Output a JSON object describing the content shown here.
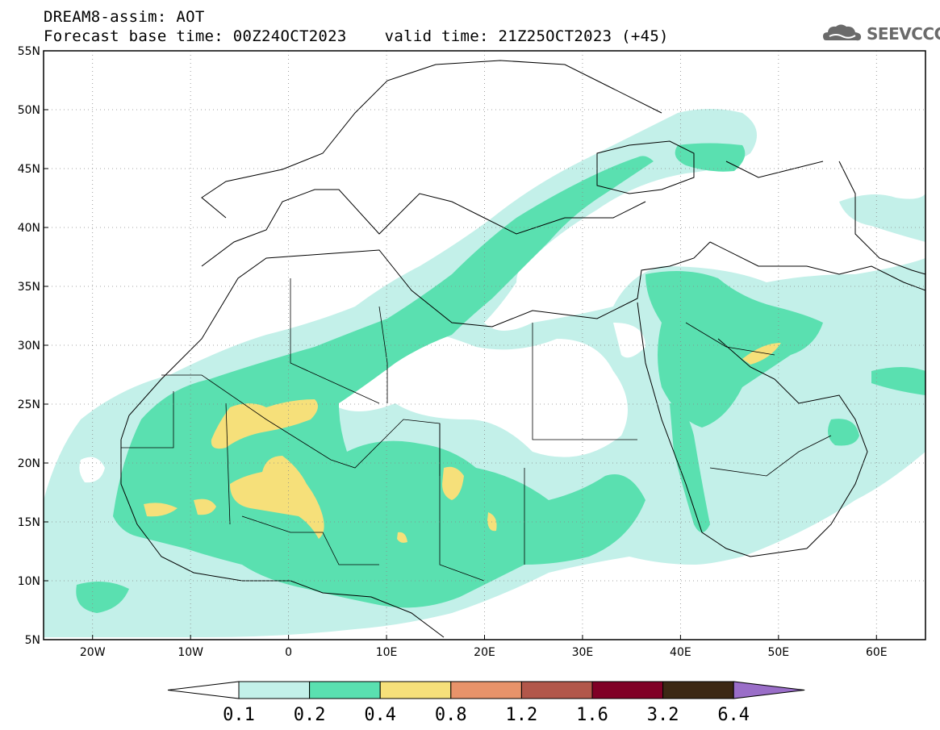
{
  "header": {
    "title": "DREAM8-assim: AOT",
    "base_time_label": "Forecast base time: 00Z24OCT2023",
    "valid_time_label": "valid time: 21Z25OCT2023 (+45)"
  },
  "logo": {
    "text": "SEEVCCC",
    "icon": "cloud-logo-icon"
  },
  "axes": {
    "lat_labels": [
      "55N",
      "50N",
      "45N",
      "40N",
      "35N",
      "30N",
      "25N",
      "20N",
      "15N",
      "10N",
      "5N"
    ],
    "lon_labels": [
      "20W",
      "10W",
      "0",
      "10E",
      "20E",
      "30E",
      "40E",
      "50E",
      "60E"
    ],
    "lat_range": [
      5,
      55
    ],
    "lon_range": [
      -25,
      65
    ],
    "grid": "dotted"
  },
  "legend": {
    "placement": "bottom-center",
    "levels": [
      "0.1",
      "0.2",
      "0.4",
      "0.8",
      "1.2",
      "1.6",
      "3.2",
      "6.4"
    ],
    "colors": [
      "#c3f0e9",
      "#5ae0b0",
      "#f6e07a",
      "#e8936a",
      "#b2574a",
      "#800026",
      "#3c2814",
      "#9a6ec8"
    ]
  }
}
